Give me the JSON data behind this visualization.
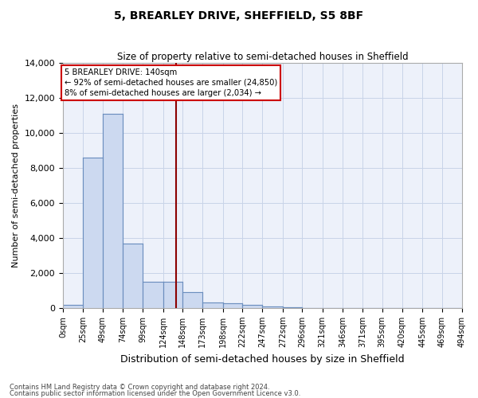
{
  "title": "5, BREARLEY DRIVE, SHEFFIELD, S5 8BF",
  "subtitle": "Size of property relative to semi-detached houses in Sheffield",
  "xlabel": "Distribution of semi-detached houses by size in Sheffield",
  "ylabel": "Number of semi-detached properties",
  "property_size": 140,
  "property_label": "5 BREARLEY DRIVE: 140sqm",
  "pct_smaller": 92,
  "pct_larger": 8,
  "count_smaller": 24850,
  "count_larger": 2034,
  "bin_edges": [
    0,
    25,
    49,
    74,
    99,
    124,
    148,
    173,
    198,
    222,
    247,
    272,
    296,
    321,
    346,
    371,
    395,
    420,
    445,
    469,
    494
  ],
  "bin_labels": [
    "0sqm",
    "25sqm",
    "49sqm",
    "74sqm",
    "99sqm",
    "124sqm",
    "148sqm",
    "173sqm",
    "198sqm",
    "222sqm",
    "247sqm",
    "272sqm",
    "296sqm",
    "321sqm",
    "346sqm",
    "371sqm",
    "395sqm",
    "420sqm",
    "445sqm",
    "469sqm",
    "494sqm"
  ],
  "bar_heights": [
    200,
    8600,
    11100,
    3700,
    1500,
    1500,
    900,
    300,
    250,
    200,
    100,
    50,
    0,
    0,
    0,
    0,
    0,
    0,
    0,
    0
  ],
  "bar_color": "#ccd9f0",
  "bar_edge_color": "#6b8ebe",
  "vline_color": "#8b0000",
  "vline_x": 140,
  "box_color": "#ffffff",
  "box_edge_color": "#cc0000",
  "grid_color": "#c8d4e8",
  "bg_color": "#edf1fa",
  "ylim": [
    0,
    14000
  ],
  "yticks": [
    0,
    2000,
    4000,
    6000,
    8000,
    10000,
    12000,
    14000
  ],
  "footnote1": "Contains HM Land Registry data © Crown copyright and database right 2024.",
  "footnote2": "Contains public sector information licensed under the Open Government Licence v3.0."
}
